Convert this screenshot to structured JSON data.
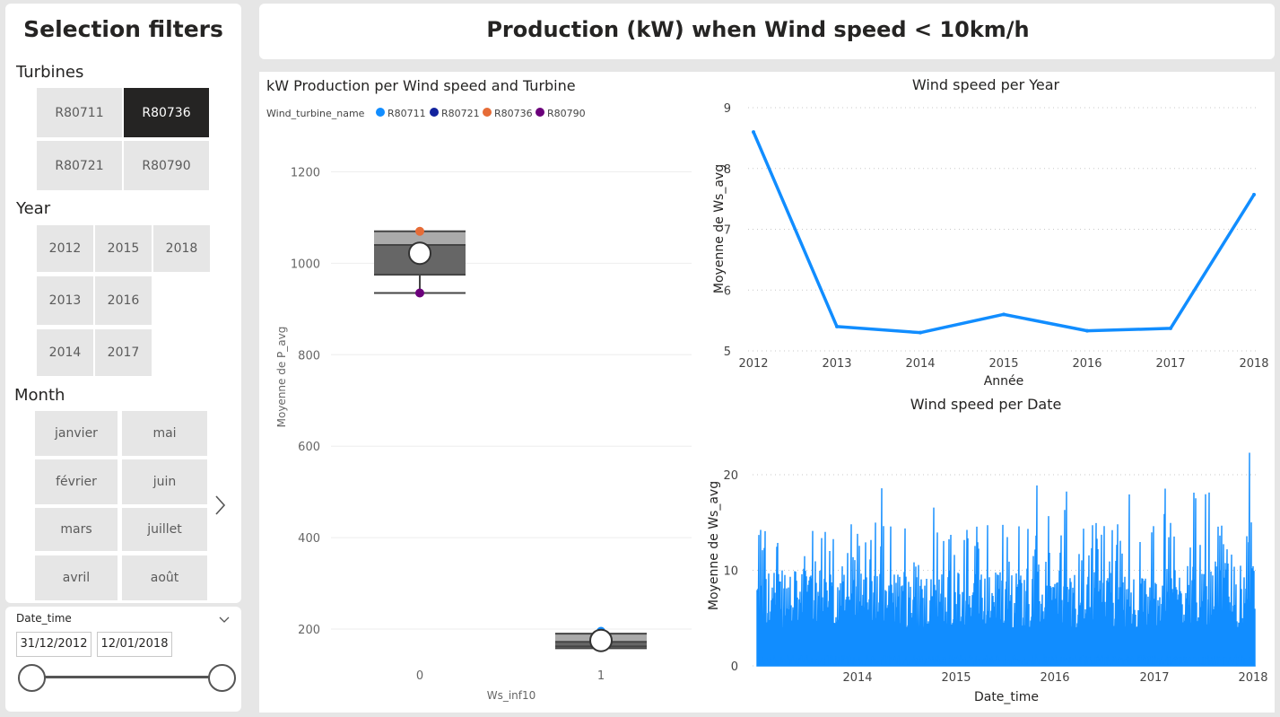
{
  "filters": {
    "title": "Selection filters",
    "turbines": {
      "label": "Turbines",
      "items": [
        "R80711",
        "R80736",
        "R80721",
        "R80790"
      ],
      "selected": "R80736"
    },
    "year": {
      "label": "Year",
      "items": [
        "2012",
        "2015",
        "2018",
        "2013",
        "2016",
        "2014",
        "2017"
      ]
    },
    "month": {
      "label": "Month",
      "items": [
        "janvier",
        "mai",
        "février",
        "juin",
        "mars",
        "juillet",
        "avril",
        "août"
      ]
    },
    "date": {
      "label": "Date_time",
      "start": "31/12/2012",
      "end": "12/01/2018"
    }
  },
  "header": {
    "title": "Production (kW) when Wind speed < 10km/h"
  },
  "boxplot": {
    "title": "kW Production per Wind speed and Turbine",
    "legend_title": "Wind_turbine_name",
    "legend": [
      {
        "name": "R80711",
        "color": "#118dff"
      },
      {
        "name": "R80721",
        "color": "#12239e"
      },
      {
        "name": "R80736",
        "color": "#e66c37"
      },
      {
        "name": "R80790",
        "color": "#6b007b"
      }
    ],
    "ylabel": "Moyenne de P_avg",
    "xlabel": "Ws_inf10"
  },
  "chart_data": [
    {
      "type": "box",
      "title": "kW Production per Wind speed and Turbine",
      "xlabel": "Ws_inf10",
      "ylabel": "Moyenne de P_avg",
      "categories": [
        "0",
        "1"
      ],
      "yticks": [
        200,
        400,
        600,
        800,
        1000,
        1200
      ],
      "ylim": [
        160,
        1270
      ],
      "boxes": [
        {
          "category": "0",
          "whisker_low": 935,
          "q1": 975,
          "median": 1040,
          "q3": 1070,
          "whisker_high": 1070,
          "mean": 1022
        },
        {
          "category": "1",
          "whisker_low": 158,
          "q1": 162,
          "median": 172,
          "q3": 190,
          "whisker_high": 195,
          "mean": 175
        }
      ],
      "points": [
        {
          "category": "0",
          "series": "R80736",
          "value": 1070
        },
        {
          "category": "0",
          "series": "R80790",
          "value": 935
        },
        {
          "category": "1",
          "series": "R80711",
          "value": 195
        }
      ]
    },
    {
      "type": "line",
      "title": "Wind speed per Year",
      "xlabel": "Année",
      "ylabel": "Moyenne de Ws_avg",
      "x": [
        2012,
        2013,
        2014,
        2015,
        2016,
        2017,
        2018
      ],
      "series": [
        {
          "values": [
            8.6,
            5.4,
            5.3,
            5.6,
            5.33,
            5.37,
            7.57
          ]
        }
      ],
      "ylim": [
        5,
        9
      ],
      "yticks": [
        5,
        6,
        7,
        8,
        9
      ],
      "grid": true,
      "color": "#118dff"
    },
    {
      "type": "area",
      "title": "Wind speed per Date",
      "xlabel": "Date_time",
      "ylabel": "Moyenne de Ws_avg",
      "xticks": [
        "2014",
        "2015",
        "2016",
        "2017",
        "2018"
      ],
      "ylim": [
        0,
        22.5
      ],
      "yticks": [
        0,
        10,
        20
      ],
      "series_summary": {
        "min": 0,
        "max": 22.3
      },
      "color": "#118dff"
    }
  ]
}
